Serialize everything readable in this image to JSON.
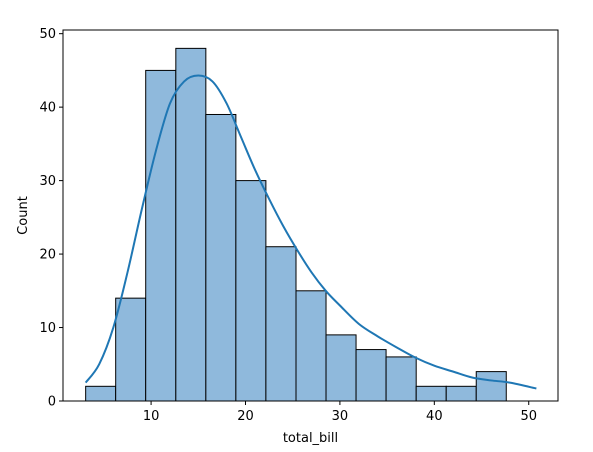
{
  "chart_data": {
    "type": "bar",
    "subtype": "histogram",
    "title": "",
    "xlabel": "total_bill",
    "ylabel": "Count",
    "xlim": [
      0.67,
      53.1
    ],
    "ylim": [
      0,
      50.5
    ],
    "xticks": [
      10,
      20,
      30,
      40,
      50
    ],
    "yticks": [
      0,
      10,
      20,
      30,
      40,
      50
    ],
    "bins": [
      {
        "x0": 3.07,
        "x1": 6.25,
        "count": 2
      },
      {
        "x0": 6.25,
        "x1": 9.43,
        "count": 14
      },
      {
        "x0": 9.43,
        "x1": 12.62,
        "count": 45
      },
      {
        "x0": 12.62,
        "x1": 15.8,
        "count": 48
      },
      {
        "x0": 15.8,
        "x1": 18.98,
        "count": 39
      },
      {
        "x0": 18.98,
        "x1": 22.16,
        "count": 30
      },
      {
        "x0": 22.16,
        "x1": 25.35,
        "count": 21
      },
      {
        "x0": 25.35,
        "x1": 28.53,
        "count": 15
      },
      {
        "x0": 28.53,
        "x1": 31.71,
        "count": 9
      },
      {
        "x0": 31.71,
        "x1": 34.89,
        "count": 7
      },
      {
        "x0": 34.89,
        "x1": 38.08,
        "count": 6
      },
      {
        "x0": 38.08,
        "x1": 41.26,
        "count": 2
      },
      {
        "x0": 41.26,
        "x1": 44.44,
        "count": 2
      },
      {
        "x0": 44.44,
        "x1": 47.62,
        "count": 4
      }
    ],
    "kde": {
      "x": [
        3.07,
        4.5,
        6,
        7.5,
        9,
        10.5,
        12,
        13.5,
        15,
        16.5,
        18,
        19.5,
        21,
        22.5,
        24,
        25.5,
        27,
        28.5,
        30,
        32,
        34,
        36,
        38,
        40,
        42,
        44,
        46,
        48,
        50.81
      ],
      "y": [
        2.5,
        5,
        10,
        17.5,
        26,
        34,
        40.5,
        43.5,
        44.3,
        43.5,
        40.5,
        36,
        31.5,
        27.5,
        23.8,
        20.5,
        17.5,
        15,
        13,
        10.5,
        8.8,
        7.3,
        5.9,
        4.8,
        4,
        3.2,
        2.8,
        2.5,
        1.7
      ]
    },
    "colors": {
      "bar_fill": "#8fb9dc",
      "bar_edge": "#000000",
      "kde_line": "#1f77b4"
    },
    "grid": false,
    "legend": "none"
  }
}
